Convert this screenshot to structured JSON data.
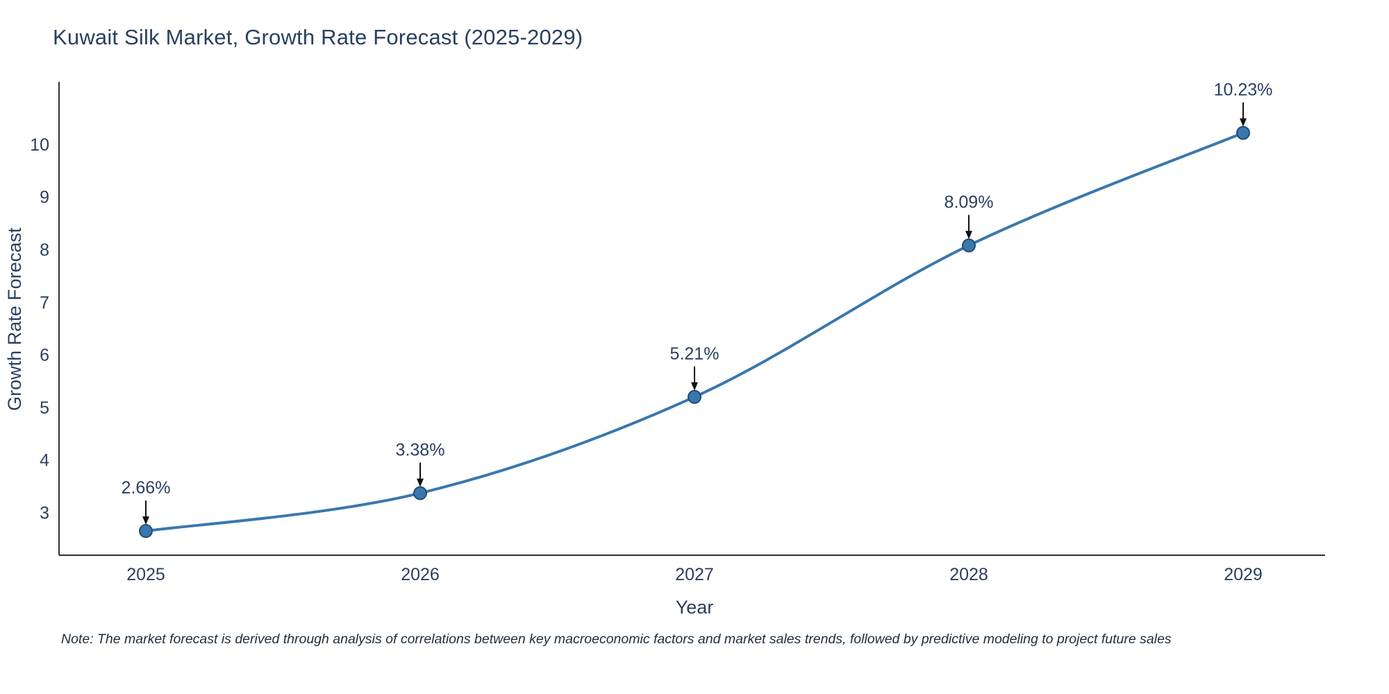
{
  "title": "Kuwait Silk Market, Growth Rate Forecast (2025-2029)",
  "note": "Note: The market forecast is derived through analysis of correlations between key macroeconomic factors and market sales trends, followed by predictive modeling to project future sales",
  "chart_data": {
    "type": "line",
    "title": "Kuwait Silk Market, Growth Rate Forecast (2025-2029)",
    "xlabel": "Year",
    "ylabel": "Growth Rate Forecast",
    "categories": [
      "2025",
      "2026",
      "2027",
      "2028",
      "2029"
    ],
    "series": [
      {
        "name": "Growth Rate Forecast",
        "values": [
          2.66,
          3.38,
          5.21,
          8.09,
          10.23
        ]
      }
    ],
    "point_labels": [
      "2.66%",
      "3.38%",
      "5.21%",
      "8.09%",
      "10.23%"
    ],
    "yticks": [
      3,
      4,
      5,
      6,
      7,
      8,
      9,
      10
    ],
    "ylim": [
      2.2,
      11.2
    ],
    "grid": false,
    "legend": "none",
    "smooth": true,
    "line_color": "#3a77ad",
    "marker_color": "#3a77ad",
    "marker_edge_color": "#1f4e79",
    "annotation_arrow_color": "#111111",
    "text_color": "#2a3f5f",
    "axis_color": "#333333"
  }
}
